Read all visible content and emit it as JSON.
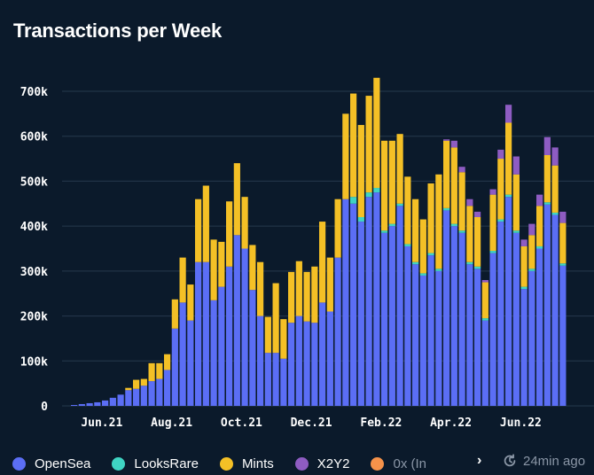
{
  "title": "Transactions per Week",
  "colors": {
    "background": "#0b1a2b",
    "grid": "#26394d",
    "OpenSea": "#5b6ef5",
    "LooksRare": "#3fd4c3",
    "Mints": "#f4c026",
    "X2Y2": "#8e5cc2",
    "0x": "#f5924a"
  },
  "legend": {
    "items": [
      {
        "label": "OpenSea",
        "color": "#5b6ef5"
      },
      {
        "label": "LooksRare",
        "color": "#3fd4c3"
      },
      {
        "label": "Mints",
        "color": "#f4c026"
      },
      {
        "label": "X2Y2",
        "color": "#8e5cc2"
      },
      {
        "label": "0x (In",
        "color": "#f5924a"
      }
    ],
    "next_icon": "chevron-right-icon",
    "next_label": "›"
  },
  "refresh": {
    "icon": "refresh-clock-icon",
    "label": "24min ago"
  },
  "chart_data": {
    "type": "bar",
    "stacked": true,
    "title": "Transactions per Week",
    "y_ticks": [
      "0",
      "100k",
      "200k",
      "300k",
      "400k",
      "500k",
      "600k",
      "700k"
    ],
    "ylim": [
      0,
      750000
    ],
    "x_tick_labels": [
      "Jun.21",
      "Aug.21",
      "Oct.21",
      "Dec.21",
      "Feb.22",
      "Apr.22",
      "Jun.22"
    ],
    "x_tick_bar_index": [
      3,
      12,
      21,
      30,
      39,
      48,
      57
    ],
    "grid": true,
    "legend_position": "bottom",
    "series": [
      {
        "name": "OpenSea",
        "color": "#5b6ef5",
        "values": [
          2000,
          4000,
          6000,
          8000,
          12000,
          18000,
          25000,
          35000,
          38000,
          45000,
          55000,
          60000,
          80000,
          172000,
          230000,
          190000,
          320000,
          320000,
          235000,
          265000,
          310000,
          380000,
          350000,
          258000,
          200000,
          118000,
          118000,
          105000,
          185000,
          200000,
          188000,
          185000,
          230000,
          210000,
          330000,
          460000,
          450000,
          410000,
          465000,
          475000,
          385000,
          400000,
          445000,
          355000,
          315000,
          290000,
          335000,
          300000,
          435000,
          400000,
          385000,
          315000,
          305000,
          190000,
          340000,
          410000,
          465000,
          385000,
          260000,
          300000,
          350000,
          448000,
          425000,
          312000
        ]
      },
      {
        "name": "LooksRare",
        "color": "#3fd4c3",
        "values": [
          0,
          0,
          0,
          0,
          0,
          0,
          0,
          0,
          0,
          0,
          0,
          0,
          0,
          0,
          0,
          0,
          0,
          0,
          0,
          0,
          0,
          0,
          0,
          0,
          0,
          0,
          0,
          0,
          0,
          0,
          0,
          0,
          0,
          0,
          0,
          0,
          15000,
          10000,
          10000,
          10000,
          5000,
          5000,
          5000,
          5000,
          5000,
          5000,
          5000,
          5000,
          5000,
          5000,
          5000,
          5000,
          5000,
          5000,
          5000,
          5000,
          5000,
          5000,
          5000,
          5000,
          5000,
          5000,
          5000,
          5000
        ]
      },
      {
        "name": "Mints",
        "color": "#f4c026",
        "values": [
          0,
          0,
          0,
          0,
          0,
          0,
          0,
          5000,
          20000,
          15000,
          40000,
          35000,
          35000,
          65000,
          100000,
          80000,
          140000,
          170000,
          135000,
          100000,
          145000,
          160000,
          115000,
          100000,
          120000,
          80000,
          155000,
          88000,
          113000,
          122000,
          110000,
          125000,
          180000,
          120000,
          130000,
          190000,
          230000,
          205000,
          215000,
          245000,
          200000,
          185000,
          155000,
          150000,
          140000,
          120000,
          155000,
          210000,
          150000,
          170000,
          130000,
          125000,
          110000,
          80000,
          125000,
          135000,
          160000,
          125000,
          90000,
          75000,
          90000,
          105000,
          105000,
          90000
        ]
      },
      {
        "name": "X2Y2",
        "color": "#8e5cc2",
        "values": [
          0,
          0,
          0,
          0,
          0,
          0,
          0,
          0,
          0,
          0,
          0,
          0,
          0,
          0,
          0,
          0,
          0,
          0,
          0,
          0,
          0,
          0,
          0,
          0,
          0,
          0,
          0,
          0,
          0,
          0,
          0,
          0,
          0,
          0,
          0,
          0,
          0,
          0,
          0,
          0,
          0,
          0,
          0,
          0,
          0,
          0,
          0,
          0,
          3000,
          15000,
          12000,
          15000,
          12000,
          5000,
          12000,
          20000,
          40000,
          40000,
          15000,
          25000,
          25000,
          40000,
          40000,
          25000
        ]
      },
      {
        "name": "0x",
        "color": "#f5924a",
        "values": [
          0,
          0,
          0,
          0,
          0,
          0,
          0,
          0,
          0,
          0,
          0,
          0,
          0,
          0,
          0,
          0,
          0,
          0,
          0,
          0,
          0,
          0,
          0,
          0,
          0,
          0,
          0,
          0,
          0,
          0,
          0,
          0,
          0,
          0,
          0,
          0,
          0,
          0,
          0,
          0,
          0,
          0,
          0,
          0,
          0,
          0,
          0,
          0,
          0,
          0,
          0,
          0,
          0,
          0,
          0,
          0,
          0,
          0,
          0,
          0,
          0,
          0,
          0,
          0
        ]
      }
    ]
  }
}
